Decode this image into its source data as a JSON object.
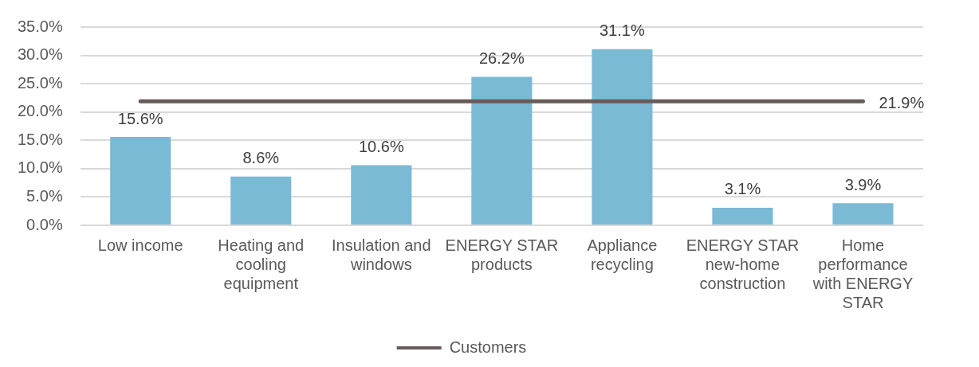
{
  "chart_data": {
    "type": "bar",
    "categories": [
      "Low income",
      "Heating and cooling equipment",
      "Insulation and windows",
      "ENERGY STAR products",
      "Appliance recycling",
      "ENERGY STAR new-home construction",
      "Home performance with ENERGY STAR"
    ],
    "series": [
      {
        "color": "#7bbad4",
        "values": [
          15.6,
          8.6,
          10.6,
          26.2,
          31.1,
          3.1,
          3.9
        ],
        "value_labels": [
          "15.6%",
          "8.6%",
          "10.6%",
          "26.2%",
          "31.1%",
          "3.1%",
          "3.9%"
        ]
      },
      {
        "type": "line",
        "name": "Customers",
        "color": "#675c59",
        "values": [
          21.9,
          21.9,
          21.9,
          21.9,
          21.9,
          21.9,
          21.9
        ],
        "value_labels": [
          null,
          null,
          null,
          null,
          null,
          null,
          "21.9%"
        ],
        "marker": "none",
        "line_style": "solid"
      }
    ],
    "ylim": [
      0,
      35
    ],
    "yticks": [
      {
        "value": 0,
        "label": "0.0%"
      },
      {
        "value": 5,
        "label": "5.0%"
      },
      {
        "value": 10,
        "label": "10.0%"
      },
      {
        "value": 15,
        "label": "15.0%"
      },
      {
        "value": 20,
        "label": "20.0%"
      },
      {
        "value": 25,
        "label": "25.0%"
      },
      {
        "value": 30,
        "label": "30.0%"
      },
      {
        "value": 35,
        "label": "35.0%"
      }
    ],
    "grid": "y",
    "legend": "bottom"
  }
}
